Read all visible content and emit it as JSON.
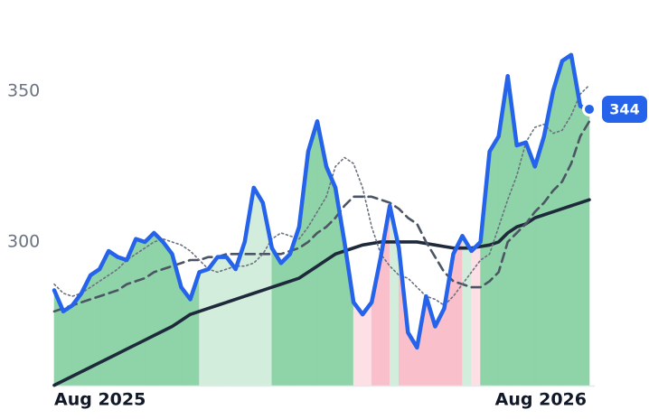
{
  "chart_data": {
    "type": "line",
    "categories": [
      "Aug 2025",
      null,
      null,
      null,
      null,
      null,
      null,
      null,
      null,
      null,
      null,
      null,
      null,
      null,
      null,
      null,
      null,
      null,
      null,
      null,
      null,
      null,
      null,
      null,
      null,
      null,
      null,
      null,
      null,
      null,
      null,
      null,
      null,
      null,
      null,
      null,
      null,
      null,
      null,
      null,
      null,
      null,
      null,
      null,
      null,
      null,
      null,
      null,
      null,
      "Aug 2026",
      null,
      null,
      null,
      null,
      null,
      null,
      null,
      null,
      null,
      null
    ],
    "series": [
      {
        "color": "#2563eb",
        "style": "solid",
        "width": 4.5,
        "values": [
          284,
          277,
          279,
          283,
          289,
          291,
          297,
          295,
          294,
          301,
          300,
          303,
          300,
          296,
          285,
          281,
          290,
          291,
          295,
          295,
          291,
          300,
          318,
          313,
          298,
          293,
          296,
          305,
          330,
          340,
          325,
          318,
          300,
          280,
          276,
          280,
          295,
          312,
          298,
          270,
          265,
          282,
          272,
          278,
          296,
          302,
          297,
          300,
          330,
          335,
          355,
          332,
          333,
          325,
          335,
          350,
          360,
          362,
          345,
          344
        ]
      },
      {
        "color": "#6b7280",
        "style": "dotted",
        "width": 1.6,
        "values": [
          286,
          283,
          282,
          283,
          285,
          287,
          289,
          291,
          294,
          296,
          298,
          300,
          301,
          300,
          299,
          297,
          294,
          291,
          290,
          291,
          292,
          292,
          293,
          296,
          301,
          303,
          302,
          301,
          305,
          310,
          315,
          325,
          328,
          326,
          318,
          305,
          296,
          292,
          289,
          288,
          285,
          282,
          281,
          279,
          282,
          286,
          290,
          294,
          296,
          305,
          314,
          322,
          333,
          338,
          339,
          336,
          337,
          342,
          349,
          352
        ]
      },
      {
        "color": "#4b5563",
        "style": "dashed",
        "width": 2.6,
        "values": [
          277,
          278,
          279,
          280,
          281,
          282,
          283,
          284,
          286,
          287,
          288,
          290,
          291,
          292,
          293,
          294,
          294,
          295,
          295,
          296,
          296,
          296,
          296,
          296,
          296,
          296,
          297,
          298,
          300,
          303,
          305,
          308,
          312,
          315,
          315,
          315,
          314,
          313,
          311,
          308,
          306,
          300,
          295,
          290,
          287,
          286,
          285,
          285,
          287,
          290,
          300,
          303,
          306,
          310,
          313,
          317,
          320,
          326,
          335,
          340
        ]
      },
      {
        "color": "#1e293b",
        "style": "solid",
        "width": 3.6,
        "values": [
          252.5,
          254,
          255.5,
          257,
          258.5,
          260,
          261.5,
          263,
          264.5,
          266,
          267.5,
          269,
          270.5,
          272,
          274,
          276,
          277,
          278,
          279,
          280,
          281,
          282,
          283,
          284,
          285,
          286,
          287,
          288,
          290,
          292,
          294,
          296,
          297,
          298,
          299,
          299.5,
          300,
          300,
          300,
          300,
          300,
          299.5,
          299,
          298.5,
          298,
          298,
          298,
          298.5,
          299,
          300,
          303,
          305,
          306,
          308,
          309,
          310,
          311,
          312,
          313,
          314
        ]
      }
    ],
    "area_colors": {
      "up_strong": "#8fd3a8",
      "up_weak": "#d3eddc",
      "down_weak": "#fde0e6",
      "down_strong": "#f9c0cb"
    },
    "ylim": [
      252.4,
      380.2
    ],
    "yticks": [
      300,
      350
    ],
    "grid": false
  }
}
